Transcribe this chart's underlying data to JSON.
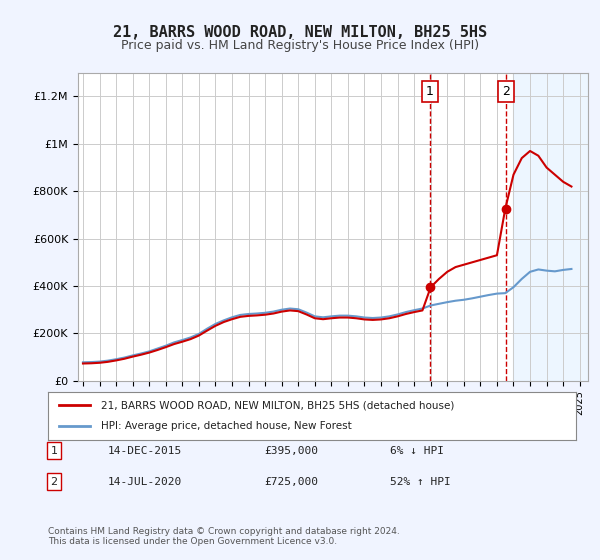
{
  "title": "21, BARRS WOOD ROAD, NEW MILTON, BH25 5HS",
  "subtitle": "Price paid vs. HM Land Registry's House Price Index (HPI)",
  "title_fontsize": 11,
  "subtitle_fontsize": 9,
  "ylabel_ticks": [
    "£0",
    "£200K",
    "£400K",
    "£600K",
    "£800K",
    "£1M",
    "£1.2M"
  ],
  "ytick_values": [
    0,
    200000,
    400000,
    600000,
    800000,
    1000000,
    1200000
  ],
  "ylim": [
    0,
    1300000
  ],
  "xlim_start": 1995.0,
  "xlim_end": 2025.5,
  "background_color": "#f0f4ff",
  "plot_bg_color": "#ffffff",
  "grid_color": "#cccccc",
  "hpi_color": "#6699cc",
  "house_color": "#cc0000",
  "sale1_year": 2015.96,
  "sale1_price": 395000,
  "sale2_year": 2020.54,
  "sale2_price": 725000,
  "vline_color": "#cc0000",
  "vline_style": "--",
  "legend_label_house": "21, BARRS WOOD ROAD, NEW MILTON, BH25 5HS (detached house)",
  "legend_label_hpi": "HPI: Average price, detached house, New Forest",
  "note1_label": "1",
  "note1_date": "14-DEC-2015",
  "note1_price": "£395,000",
  "note1_pct": "6% ↓ HPI",
  "note2_label": "2",
  "note2_date": "14-JUL-2020",
  "note2_price": "£725,000",
  "note2_pct": "52% ↑ HPI",
  "copyright": "Contains HM Land Registry data © Crown copyright and database right 2024.\nThis data is licensed under the Open Government Licence v3.0.",
  "hpi_data_x": [
    1995.0,
    1995.5,
    1996.0,
    1996.5,
    1997.0,
    1997.5,
    1998.0,
    1998.5,
    1999.0,
    1999.5,
    2000.0,
    2000.5,
    2001.0,
    2001.5,
    2002.0,
    2002.5,
    2003.0,
    2003.5,
    2004.0,
    2004.5,
    2005.0,
    2005.5,
    2006.0,
    2006.5,
    2007.0,
    2007.5,
    2008.0,
    2008.5,
    2009.0,
    2009.5,
    2010.0,
    2010.5,
    2011.0,
    2011.5,
    2012.0,
    2012.5,
    2013.0,
    2013.5,
    2014.0,
    2014.5,
    2015.0,
    2015.5,
    2016.0,
    2016.5,
    2017.0,
    2017.5,
    2018.0,
    2018.5,
    2019.0,
    2019.5,
    2020.0,
    2020.5,
    2021.0,
    2021.5,
    2022.0,
    2022.5,
    2023.0,
    2023.5,
    2024.0,
    2024.5
  ],
  "hpi_data_y": [
    78000,
    79000,
    81000,
    85000,
    91000,
    98000,
    107000,
    115000,
    124000,
    136000,
    148000,
    162000,
    172000,
    183000,
    198000,
    220000,
    240000,
    255000,
    268000,
    278000,
    282000,
    284000,
    287000,
    292000,
    300000,
    305000,
    302000,
    288000,
    272000,
    268000,
    272000,
    275000,
    275000,
    272000,
    267000,
    265000,
    267000,
    272000,
    280000,
    290000,
    298000,
    305000,
    318000,
    325000,
    332000,
    338000,
    342000,
    348000,
    355000,
    362000,
    368000,
    370000,
    395000,
    430000,
    460000,
    470000,
    465000,
    462000,
    468000,
    472000
  ],
  "house_data_x": [
    1995.0,
    1995.5,
    1996.0,
    1996.5,
    1997.0,
    1997.5,
    1998.0,
    1998.5,
    1999.0,
    1999.5,
    2000.0,
    2000.5,
    2001.0,
    2001.5,
    2002.0,
    2002.5,
    2003.0,
    2003.5,
    2004.0,
    2004.5,
    2005.0,
    2005.5,
    2006.0,
    2006.5,
    2007.0,
    2007.5,
    2008.0,
    2008.5,
    2009.0,
    2009.5,
    2010.0,
    2010.5,
    2011.0,
    2011.5,
    2012.0,
    2012.5,
    2013.0,
    2013.5,
    2014.0,
    2014.5,
    2015.0,
    2015.5,
    2016.0,
    2016.5,
    2017.0,
    2017.5,
    2018.0,
    2018.5,
    2019.0,
    2019.5,
    2020.0,
    2020.5,
    2021.0,
    2021.5,
    2022.0,
    2022.5,
    2023.0,
    2023.5,
    2024.0,
    2024.5
  ],
  "house_data_y": [
    73000,
    74000,
    76000,
    80000,
    86000,
    93000,
    102000,
    110000,
    119000,
    130000,
    142000,
    155000,
    165000,
    176000,
    191000,
    212000,
    232000,
    248000,
    260000,
    270000,
    274000,
    276000,
    279000,
    284000,
    292000,
    297000,
    294000,
    280000,
    264000,
    260000,
    264000,
    267000,
    267000,
    264000,
    259000,
    257000,
    259000,
    264000,
    272000,
    282000,
    290000,
    297000,
    395000,
    430000,
    460000,
    480000,
    490000,
    500000,
    510000,
    520000,
    530000,
    725000,
    870000,
    940000,
    970000,
    950000,
    900000,
    870000,
    840000,
    820000
  ]
}
